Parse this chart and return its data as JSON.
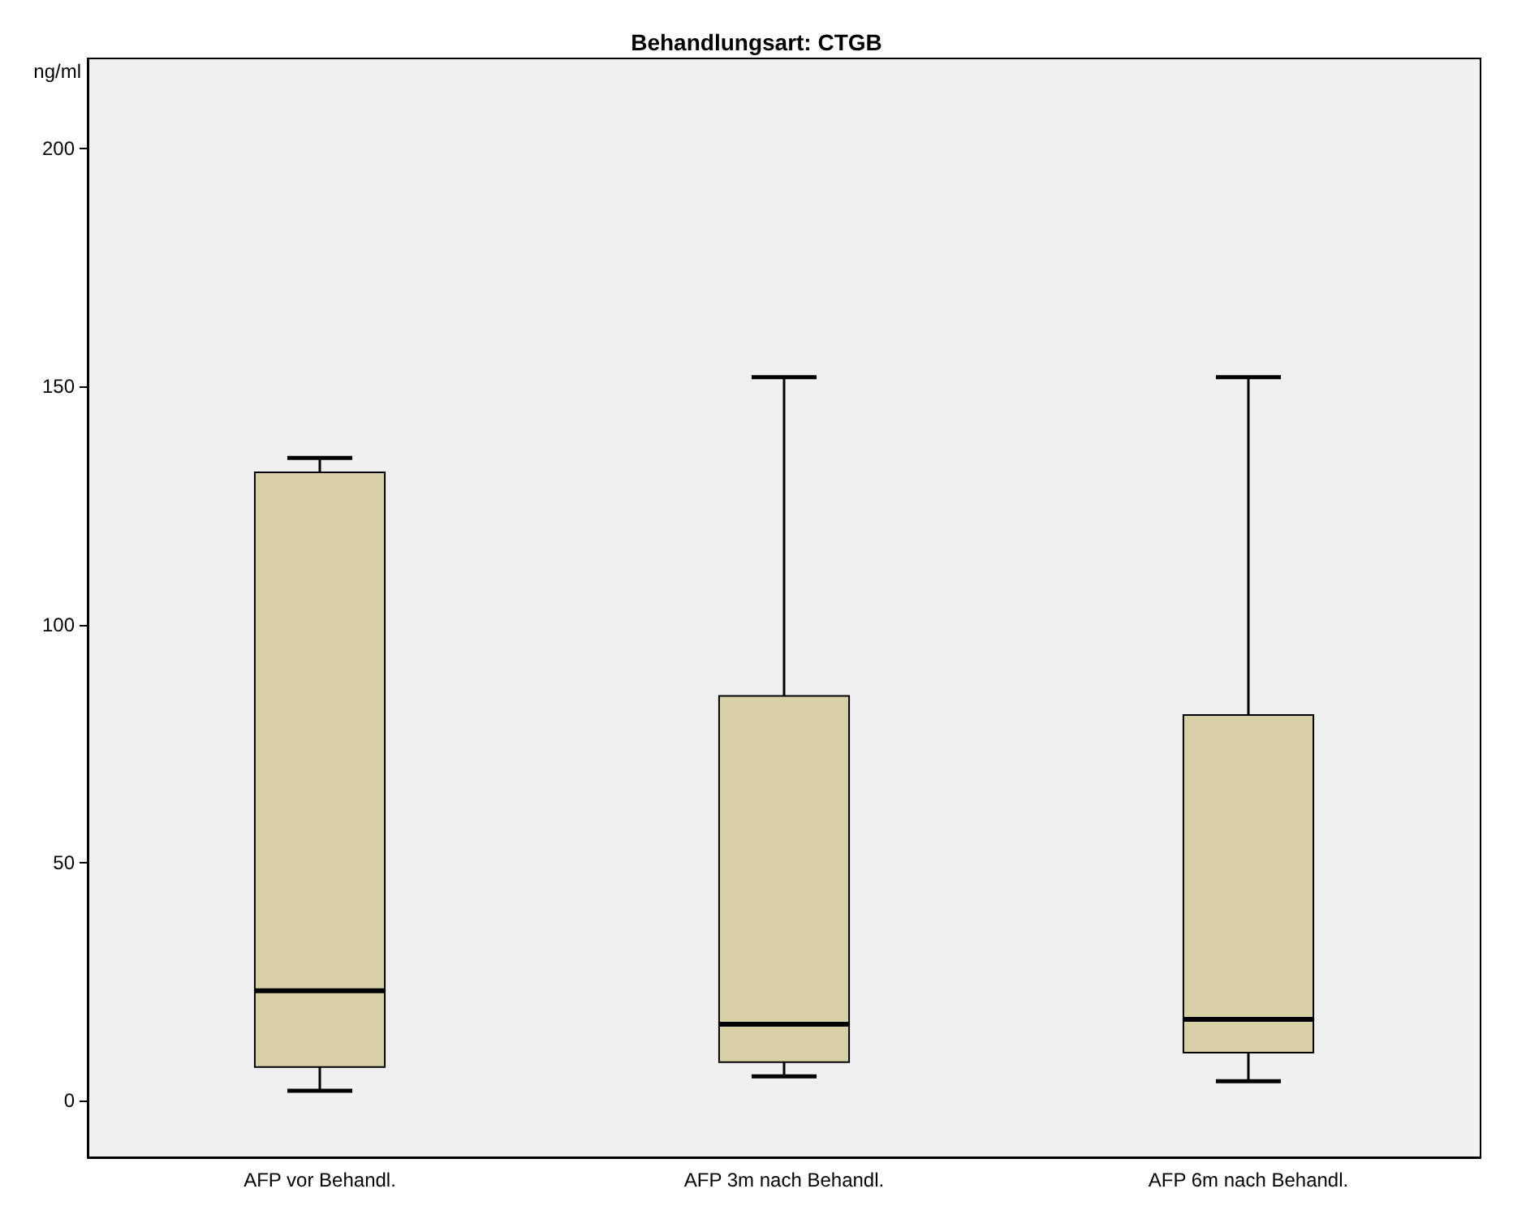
{
  "chart_data": {
    "type": "box",
    "title": "Behandlungsart: CTGB",
    "ylabel": "ng/ml",
    "categories": [
      "AFP vor Behandl.",
      "AFP 3m nach Behandl.",
      "AFP 6m nach Behandl."
    ],
    "color": "#d8d1a5",
    "boxes": [
      {
        "low": 2,
        "q1": 7,
        "median": 23,
        "q3": 132,
        "high": 135
      },
      {
        "low": 5,
        "q1": 8,
        "median": 16,
        "q3": 85,
        "high": 152
      },
      {
        "low": 4,
        "q1": 10,
        "median": 17,
        "q3": 81,
        "high": 152
      }
    ],
    "ylim": [
      -12,
      219
    ],
    "yticks": [
      0,
      50,
      100,
      150,
      200
    ],
    "grid": false
  }
}
